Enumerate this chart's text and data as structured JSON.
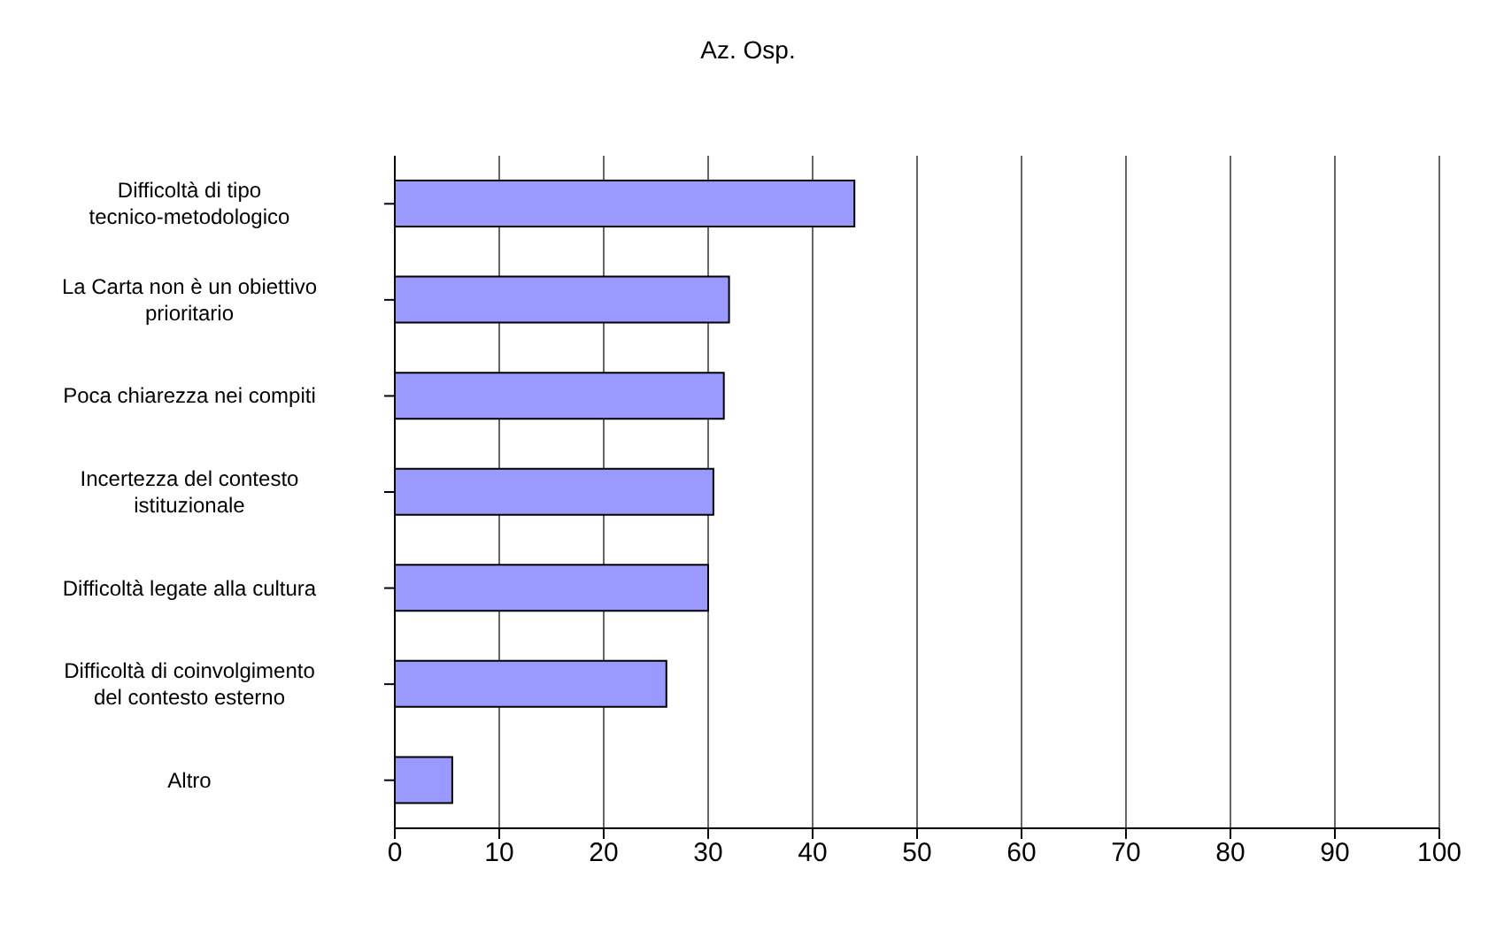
{
  "chart_data": {
    "type": "bar",
    "orientation": "horizontal",
    "title": "Az. Osp.",
    "categories": [
      "Difficoltà di tipo tecnico-metodologico",
      "La Carta non è un obiettivo prioritario",
      "Poca chiarezza nei compiti",
      "Incertezza del contesto istituzionale",
      "Difficoltà legate alla cultura",
      "Difficoltà di coinvolgimento del contesto esterno",
      "Altro"
    ],
    "values": [
      44,
      32,
      31.5,
      30.5,
      30,
      26,
      5.5
    ],
    "color": "#9999ff",
    "xlim": [
      0,
      100
    ],
    "xticks": [
      0,
      10,
      20,
      30,
      40,
      50,
      60,
      70,
      80,
      90,
      100
    ],
    "grid": "x"
  }
}
